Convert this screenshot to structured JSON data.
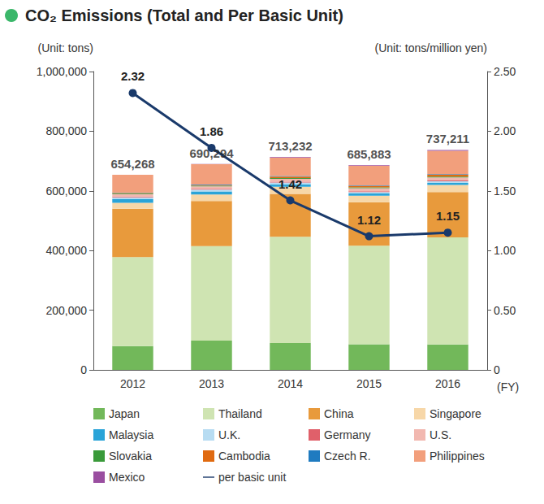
{
  "chart_data": {
    "type": "bar",
    "title": "CO₂ Emissions (Total and Per Basic Unit)",
    "y_label": "(Unit: tons)",
    "y2_label": "(Unit: tons/million yen)",
    "x_label": "(FY)",
    "categories": [
      "2012",
      "2013",
      "2014",
      "2015",
      "2016"
    ],
    "stacked": true,
    "grid": false,
    "legend": "bottom",
    "ylim": [
      0,
      1000000
    ],
    "yticks": [
      0,
      {
        "value": 200000,
        "label": "200,000"
      },
      {
        "value": 400000,
        "label": "400,000"
      },
      {
        "value": 600000,
        "label": "600,000"
      },
      {
        "value": 800000,
        "label": "800,000"
      },
      {
        "value": 1000000,
        "label": "1,000,000"
      }
    ],
    "y2lim": [
      0,
      2.5
    ],
    "y2ticks": [
      0,
      {
        "value": 0.5,
        "label": "0.50"
      },
      {
        "value": 1,
        "label": "1.00"
      },
      {
        "value": 1.5,
        "label": "1.50"
      },
      {
        "value": 2,
        "label": "2.00"
      },
      {
        "value": 2.5,
        "label": "2.50"
      }
    ],
    "totals": [
      654268,
      690294,
      713232,
      685883,
      737211
    ],
    "total_labels": [
      "654,268",
      "690,294",
      "713,232",
      "685,883",
      "737,211"
    ],
    "series": [
      {
        "name": "Japan",
        "color": "#72b85a",
        "values": [
          80000,
          98000,
          90000,
          86000,
          85000
        ]
      },
      {
        "name": "Thailand",
        "color": "#cfe4b2",
        "values": [
          298000,
          317000,
          356000,
          330000,
          359000
        ]
      },
      {
        "name": "China",
        "color": "#e89a3c",
        "values": [
          162000,
          151000,
          144000,
          146000,
          152000
        ]
      },
      {
        "name": "Singapore",
        "color": "#f7d7a8",
        "values": [
          20000,
          22000,
          24000,
          22000,
          24000
        ]
      },
      {
        "name": "Malaysia",
        "color": "#2aa4d8",
        "values": [
          12000,
          10000,
          8000,
          7000,
          7000
        ]
      },
      {
        "name": "U.K.",
        "color": "#b7dcf2",
        "values": [
          6000,
          6000,
          6000,
          5000,
          5000
        ]
      },
      {
        "name": "Germany",
        "color": "#e0606a",
        "values": [
          3000,
          3000,
          3000,
          3000,
          3000
        ]
      },
      {
        "name": "U.S.",
        "color": "#f2b8b0",
        "values": [
          8000,
          8000,
          9000,
          10000,
          10000
        ]
      },
      {
        "name": "Slovakia",
        "color": "#3a9a3a",
        "values": [
          2000,
          2000,
          3000,
          3000,
          3000
        ]
      },
      {
        "name": "Cambodia",
        "color": "#e06a10",
        "values": [
          2000,
          2000,
          5000,
          4000,
          6000
        ]
      },
      {
        "name": "Czech R.",
        "color": "#1f7bc0",
        "values": [
          2000,
          2000,
          2000,
          2000,
          2000
        ]
      },
      {
        "name": "Philippines",
        "color": "#f29f7c",
        "values": [
          59268,
          68294,
          61232,
          65883,
          78211
        ]
      },
      {
        "name": "Mexico",
        "color": "#9a4ea0",
        "values": [
          0,
          1000,
          2000,
          2000,
          3000
        ]
      },
      {
        "name": "per basic unit",
        "type": "line",
        "axis": "y2",
        "color": "#1a3a6b",
        "marker": "circle",
        "data_labels": true,
        "values": [
          2.32,
          1.86,
          1.42,
          1.12,
          1.15
        ]
      }
    ]
  }
}
